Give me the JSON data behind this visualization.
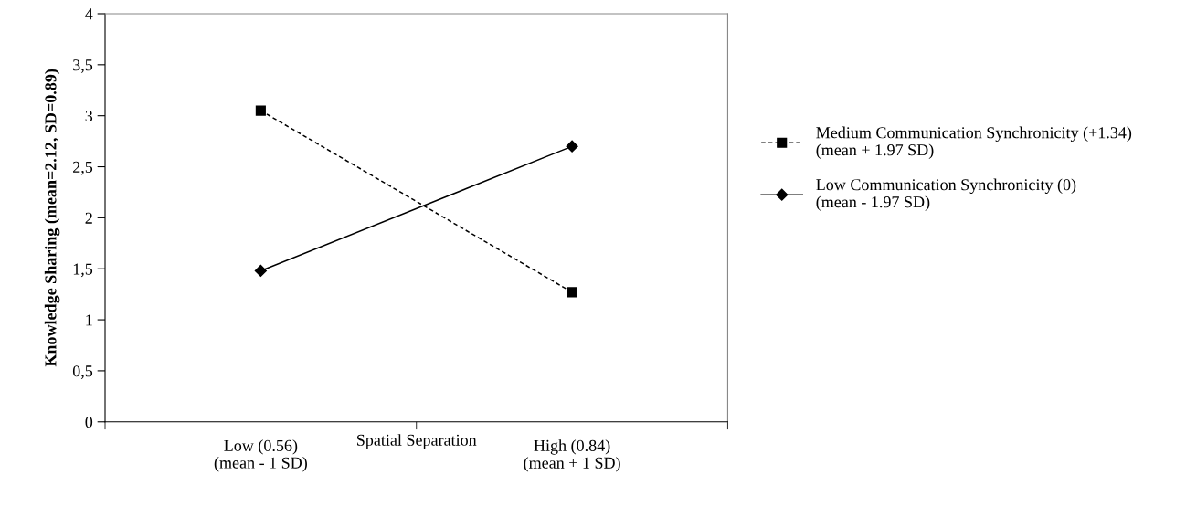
{
  "chart_data": {
    "type": "line",
    "xlabel": "Spatial Separation",
    "ylabel": "Knowledge Sharing (mean=2.12, SD=0.89)",
    "categories": [
      "Low (0.56)\n(mean - 1 SD)",
      "High (0.84)\n(mean + 1 SD)"
    ],
    "series": [
      {
        "name": "Medium Communication Synchronicity (+1.34)\n(mean + 1.97 SD)",
        "color": "#000000",
        "values": [
          3.05,
          1.27
        ],
        "marker": "square",
        "line_style": "dashed"
      },
      {
        "name": "Low Communication Synchronicity (0)\n(mean - 1.97 SD)",
        "color": "#000000",
        "values": [
          1.48,
          2.7
        ],
        "marker": "diamond",
        "line_style": "solid"
      }
    ],
    "ylim": [
      0,
      4
    ],
    "yticks": [
      0,
      {
        "value": 0.5,
        "label": "0,5"
      },
      1,
      {
        "value": 1.5,
        "label": "1,5"
      },
      2,
      {
        "value": 2.5,
        "label": "2,5"
      },
      3,
      {
        "value": 3.5,
        "label": "3,5"
      },
      4
    ],
    "grid": false,
    "legend": "right"
  }
}
